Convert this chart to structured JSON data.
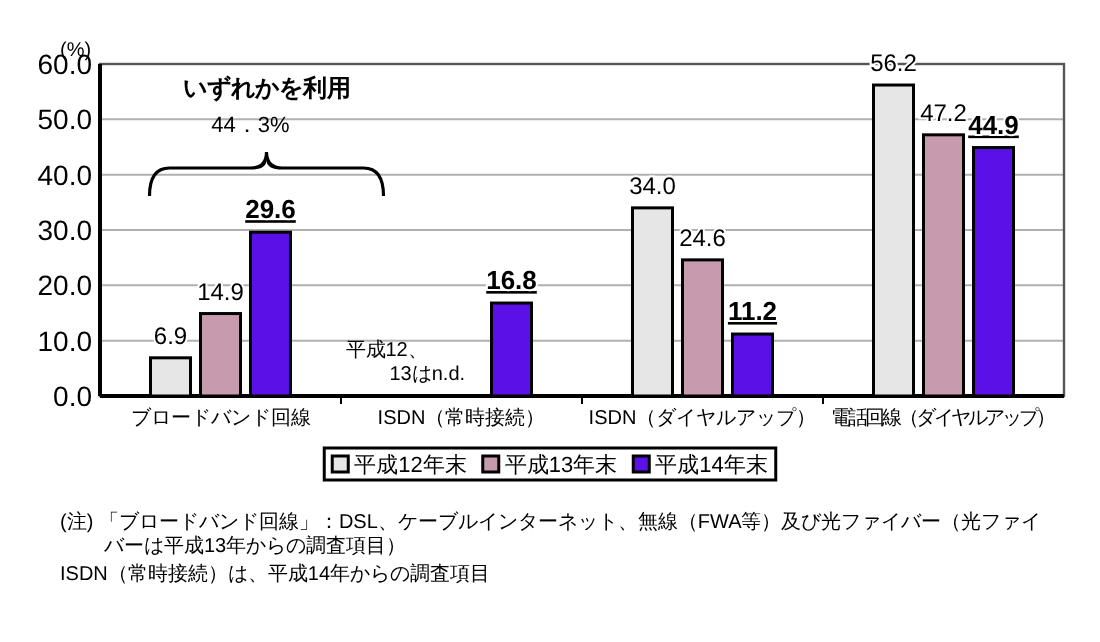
{
  "chart_data": {
    "type": "bar",
    "ylabel": "(%)",
    "categories": [
      "ブロードバンド回線",
      "ISDN（常時接続）",
      "ISDN（ダイヤルアップ）",
      "電話回線（ダイヤルアップ）"
    ],
    "series": [
      {
        "name": "平成12年末",
        "color": "#e6e6e6",
        "values": [
          6.9,
          null,
          34.0,
          56.2
        ],
        "value_labels": [
          "6.9",
          null,
          "34.0",
          "56.2"
        ]
      },
      {
        "name": "平成13年末",
        "color": "#c89aae",
        "values": [
          14.9,
          null,
          24.6,
          47.2
        ],
        "value_labels": [
          "14.9",
          null,
          "24.6",
          "47.2"
        ]
      },
      {
        "name": "平成14年末",
        "color": "#5a10e6",
        "values": [
          29.6,
          16.8,
          11.2,
          44.9
        ],
        "value_labels": [
          "29.6",
          "16.8",
          "11.2",
          "44.9"
        ]
      }
    ],
    "ylim": [
      0,
      60
    ],
    "yticks": [
      {
        "value": 0,
        "label": "0.0"
      },
      {
        "value": 10,
        "label": "10.0"
      },
      {
        "value": 20,
        "label": "20.0"
      },
      {
        "value": 30,
        "label": "30.0"
      },
      {
        "value": 40,
        "label": "40.0"
      },
      {
        "value": 50,
        "label": "50.0"
      },
      {
        "value": 60,
        "label": "60.0"
      }
    ],
    "grid": "y",
    "legend": "bottom",
    "annotations": [
      "いずれかを利用",
      "44．3%",
      "平成12、13はn.d.",
      "(注) 「ブロードバンド回線」：DSL、ケーブルインターネット、無線（FWA等）及び光ファイバー（光ファイバーは平成13年からの調査項目）",
      "ISDN（常時接続）は、平成14年からの調査項目"
    ]
  }
}
